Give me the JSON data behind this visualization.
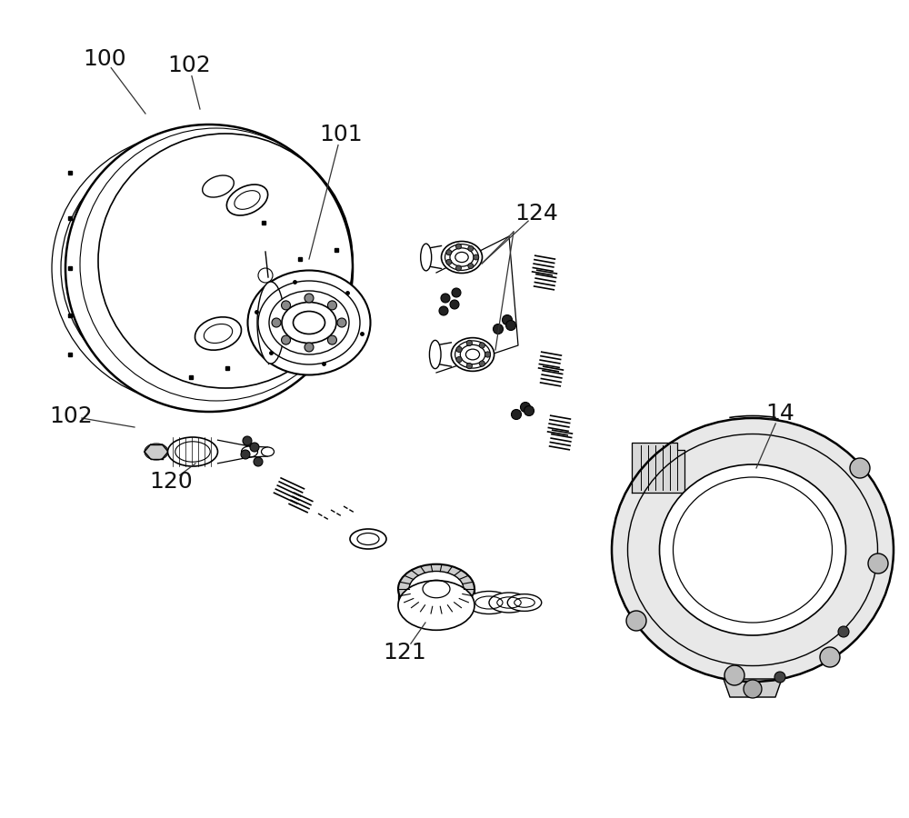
{
  "background_color": "#ffffff",
  "line_color": "#000000",
  "fig_width": 10.0,
  "fig_height": 9.0,
  "dpi": 100,
  "labels": [
    [
      "100",
      115,
      65,
      160,
      125
    ],
    [
      "102",
      208,
      72,
      220,
      120
    ],
    [
      "101",
      375,
      148,
      340,
      285
    ],
    [
      "124",
      590,
      235,
      530,
      290
    ],
    [
      "102",
      78,
      458,
      148,
      470
    ],
    [
      "120",
      188,
      530,
      215,
      510
    ],
    [
      "121",
      445,
      718,
      468,
      685
    ],
    [
      "14",
      858,
      455,
      832,
      515
    ]
  ]
}
